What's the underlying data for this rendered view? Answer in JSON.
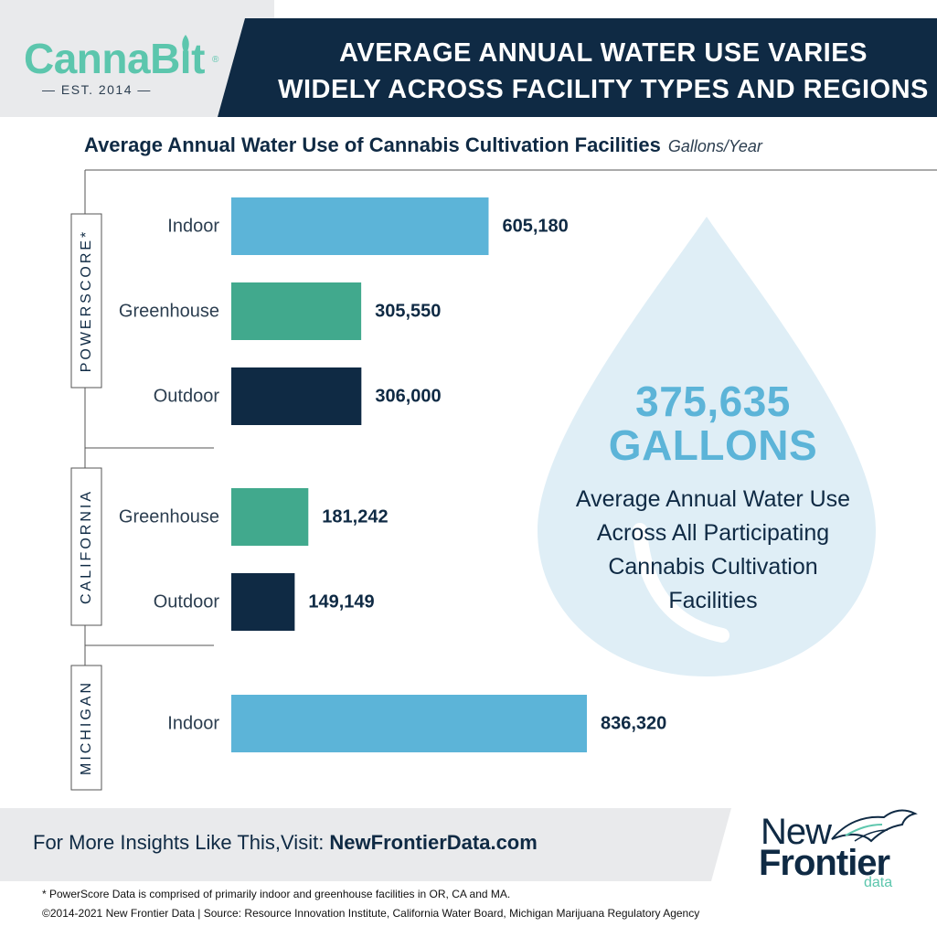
{
  "brand": {
    "logo_text": "CannaBit",
    "logo_reg": "®",
    "established": "— EST. 2014 —"
  },
  "header": {
    "line1": "AVERAGE ANNUAL WATER USE VARIES",
    "line2": "WIDELY ACROSS FACILITY TYPES AND REGIONS"
  },
  "subtitle": {
    "title": "Average Annual Water Use of Cannabis Cultivation Facilities",
    "unit": "Gallons/Year"
  },
  "colors": {
    "indoor": "#5cb4d8",
    "greenhouse": "#41a98d",
    "outdoor": "#0f2a44",
    "navy": "#0f2a44",
    "drop": "#dfeef6",
    "stat": "#5cb4d8",
    "mint": "#5cc6ad"
  },
  "chart_data": {
    "type": "bar",
    "orientation": "horizontal",
    "title": "Average Annual Water Use of Cannabis Cultivation Facilities",
    "unit": "Gallons/Year",
    "xlim": [
      0,
      836320
    ],
    "groups": [
      {
        "name": "POWERSCORE*",
        "bars": [
          {
            "label": "Indoor",
            "value": 605180,
            "value_label": "605,180",
            "type": "indoor"
          },
          {
            "label": "Greenhouse",
            "value": 305550,
            "value_label": "305,550",
            "type": "greenhouse"
          },
          {
            "label": "Outdoor",
            "value": 306000,
            "value_label": "306,000",
            "type": "outdoor"
          }
        ]
      },
      {
        "name": "CALIFORNIA",
        "bars": [
          {
            "label": "Greenhouse",
            "value": 181242,
            "value_label": "181,242",
            "type": "greenhouse"
          },
          {
            "label": "Outdoor",
            "value": 149149,
            "value_label": "149,149",
            "type": "outdoor"
          }
        ]
      },
      {
        "name": "MICHIGAN",
        "bars": [
          {
            "label": "Indoor",
            "value": 836320,
            "value_label": "836,320",
            "type": "indoor"
          }
        ]
      }
    ]
  },
  "callout": {
    "number": "375,635",
    "unit": "GALLONS",
    "description_lines": [
      "Average Annual Water Use",
      "Across All Participating",
      "Cannabis Cultivation",
      "Facilities"
    ]
  },
  "footer": {
    "cta_prefix": "For More Insights Like This,Visit: ",
    "cta_link": "NewFrontierData.com",
    "nf_line1": "New",
    "nf_line2": "Frontier",
    "nf_line3": "data",
    "footnote": "* PowerScore Data is comprised of primarily indoor and greenhouse facilities in OR, CA and MA.",
    "copyright": "©2014-2021 New Frontier Data | Source: Resource Innovation Institute, California Water Board, Michigan Marijuana Regulatory Agency"
  }
}
